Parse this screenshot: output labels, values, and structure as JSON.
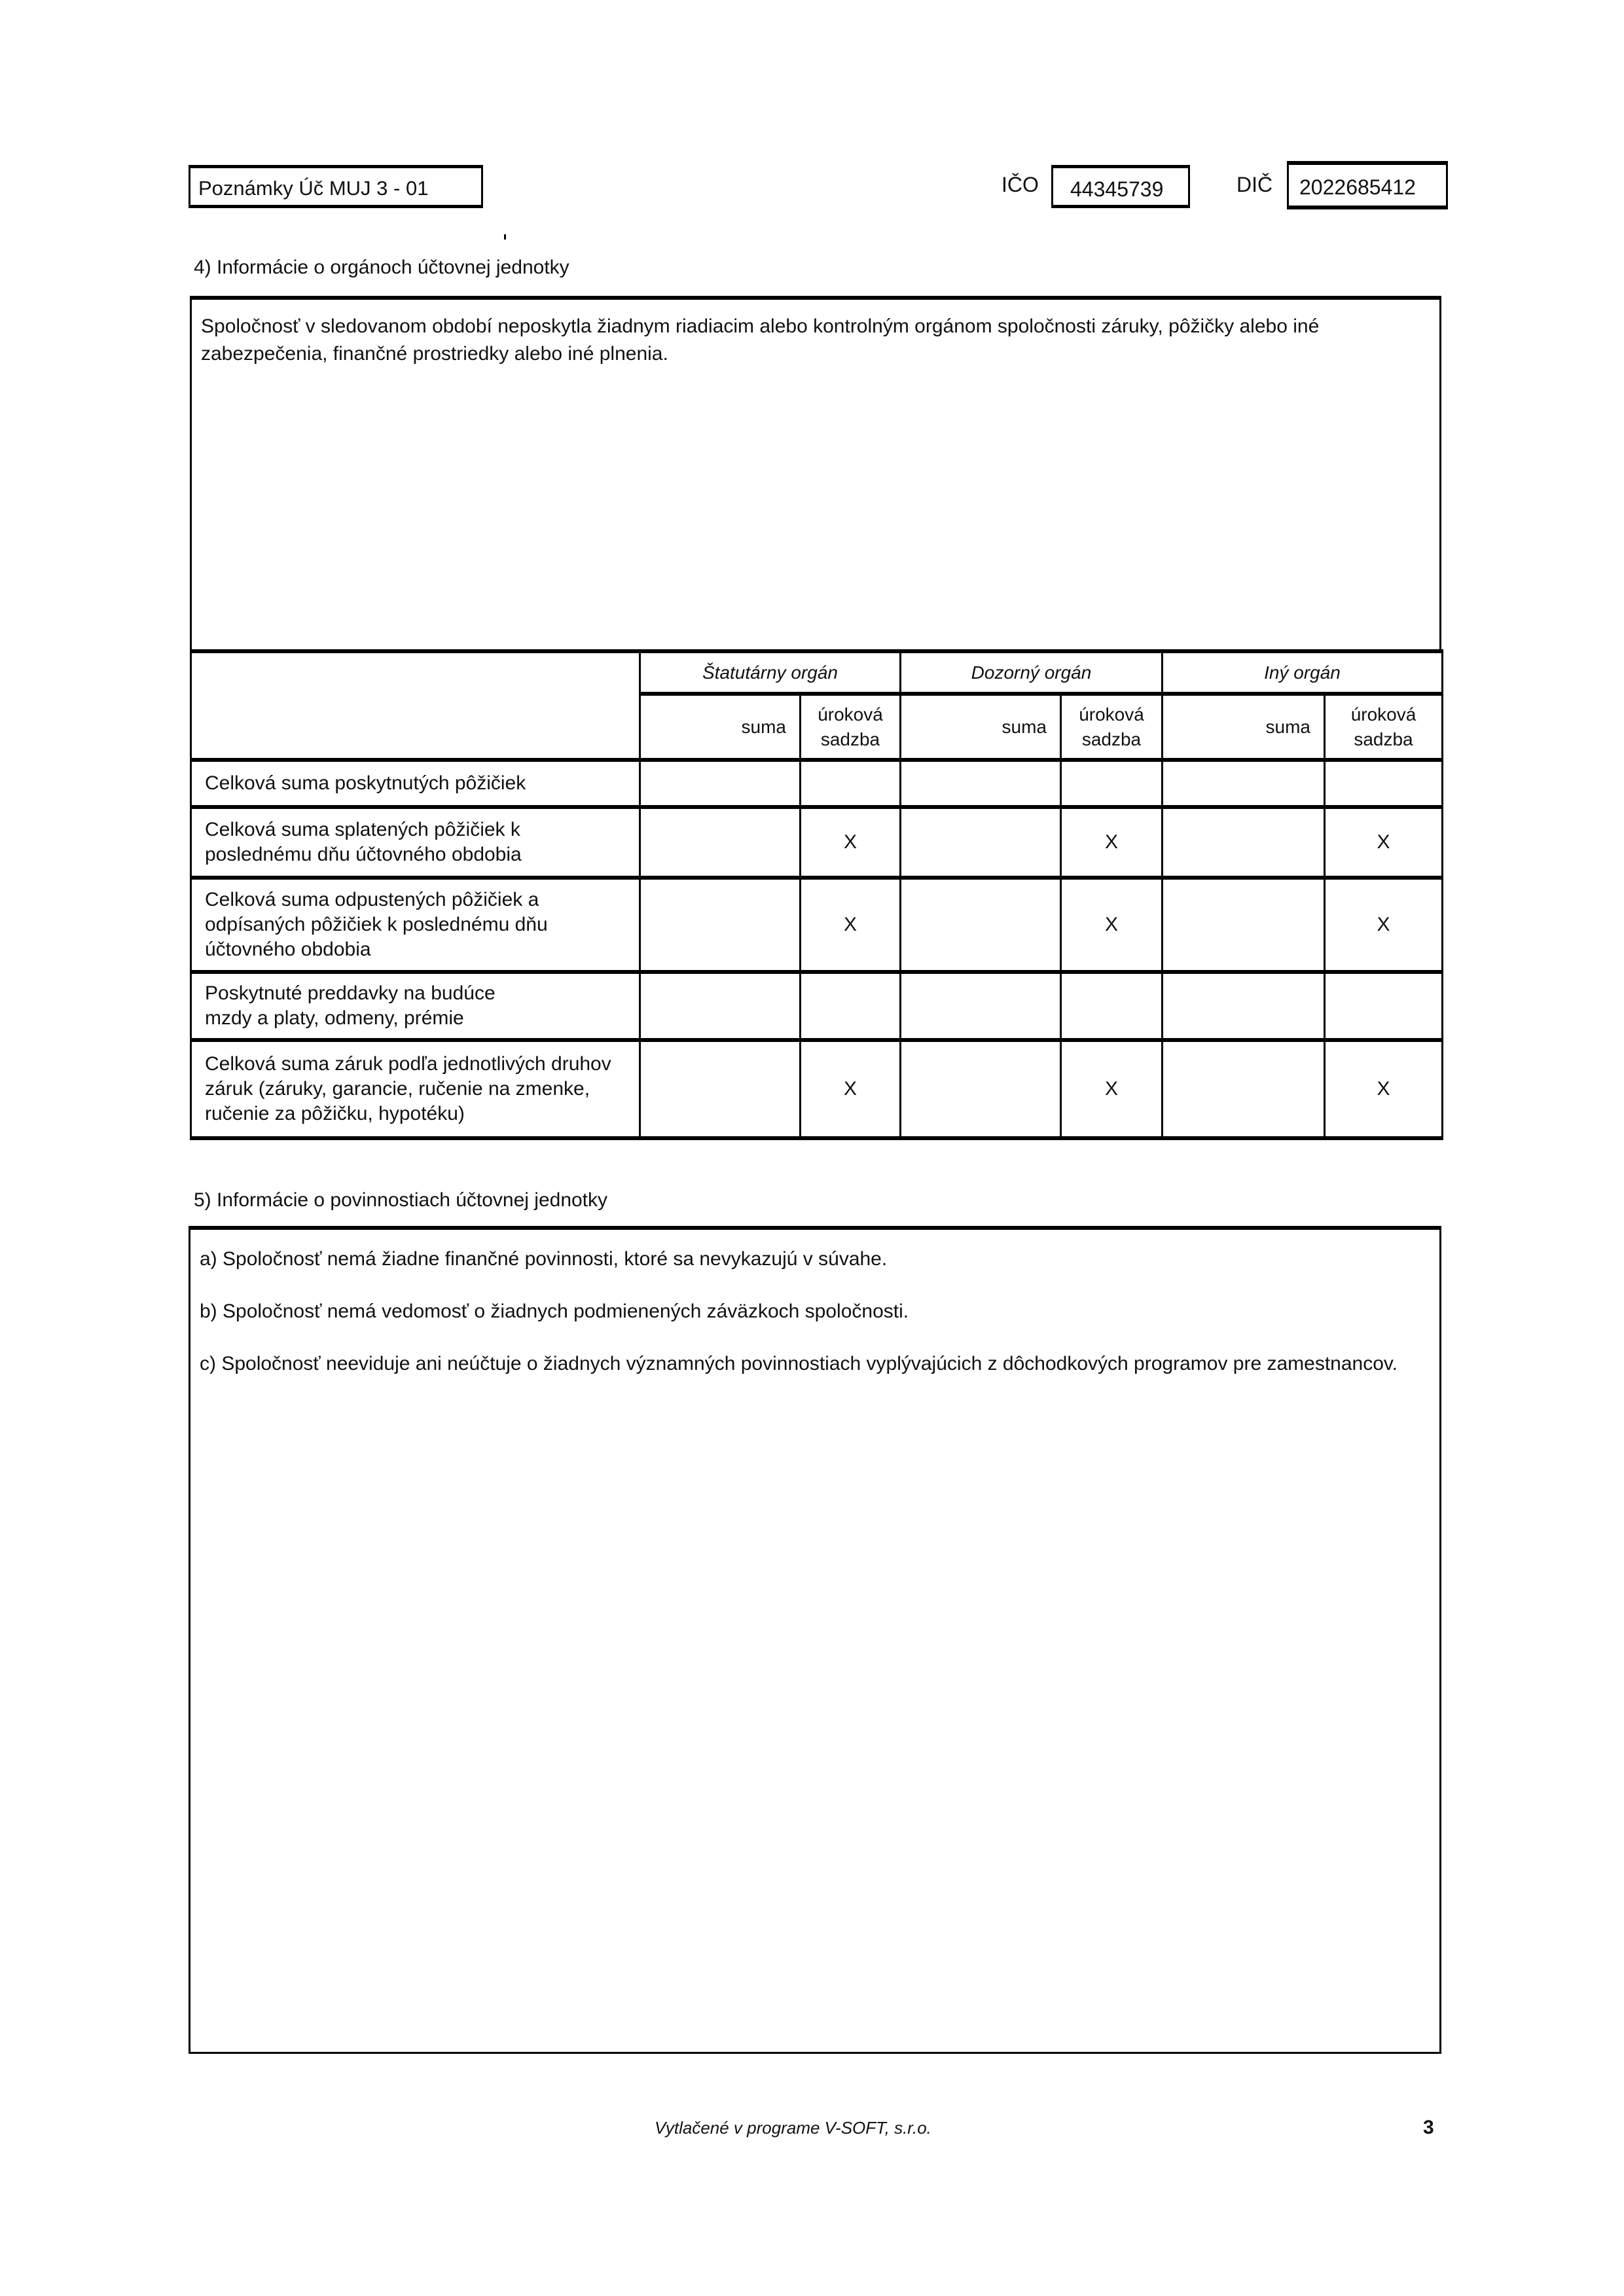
{
  "header": {
    "form_label": "Poznámky Úč MUJ 3 - 01",
    "ico_label": "IČO",
    "ico_value": "44345739",
    "dic_label": "DIČ",
    "dic_value": "2022685412"
  },
  "section4": {
    "title": "4) Informácie o orgánoch účtovnej jednotky",
    "text": "Spoločnosť v sledovanom období neposkytla  žiadnym riadiacim alebo kontrolným orgánom spoločnosti záruky, pôžičky alebo iné zabezpečenia, finančné prostriedky alebo iné plnenia.",
    "table": {
      "groups": [
        "Štatutárny orgán",
        "Dozorný orgán",
        "Iný orgán"
      ],
      "subheaders": [
        "suma",
        "úroková sadzba"
      ],
      "rows": [
        {
          "label": "Celková suma poskytnutých pôžičiek",
          "cells": [
            "",
            "",
            "",
            "",
            "",
            ""
          ]
        },
        {
          "label": "Celková suma splatených pôžičiek k poslednému dňu účtovného obdobia",
          "cells": [
            "",
            "X",
            "",
            "X",
            "",
            "X"
          ]
        },
        {
          "label": "Celková suma odpustených pôžičiek a odpísaných pôžičiek k poslednému dňu účtovného obdobia",
          "cells": [
            "",
            "X",
            "",
            "X",
            "",
            "X"
          ]
        },
        {
          "label": "Poskytnuté preddavky na budúce mzdy a platy, odmeny, prémie",
          "cells": [
            "",
            "",
            "",
            "",
            "",
            ""
          ]
        },
        {
          "label": "Celková suma záruk podľa jednotlivých druhov záruk (záruky, garancie, ručenie na zmenke, ručenie za pôžičku, hypotéku)",
          "cells": [
            "",
            "X",
            "",
            "X",
            "",
            "X"
          ]
        }
      ]
    }
  },
  "section5": {
    "title": "5) Informácie o povinnostiach účtovnej jednotky",
    "items": [
      "a) Spoločnosť nemá žiadne finančné povinnosti, ktoré sa nevykazujú v súvahe.",
      "b) Spoločnosť nemá vedomosť o žiadnych podmienených záväzkoch spoločnosti.",
      "c) Spoločnosť neeviduje ani neúčtuje o žiadnych významných povinnostiach vyplývajúcich z dôchodkových programov pre zamestnancov."
    ]
  },
  "footer": {
    "printed_by": "Vytlačené v programe V-SOFT, s.r.o.",
    "page_number": "3"
  }
}
